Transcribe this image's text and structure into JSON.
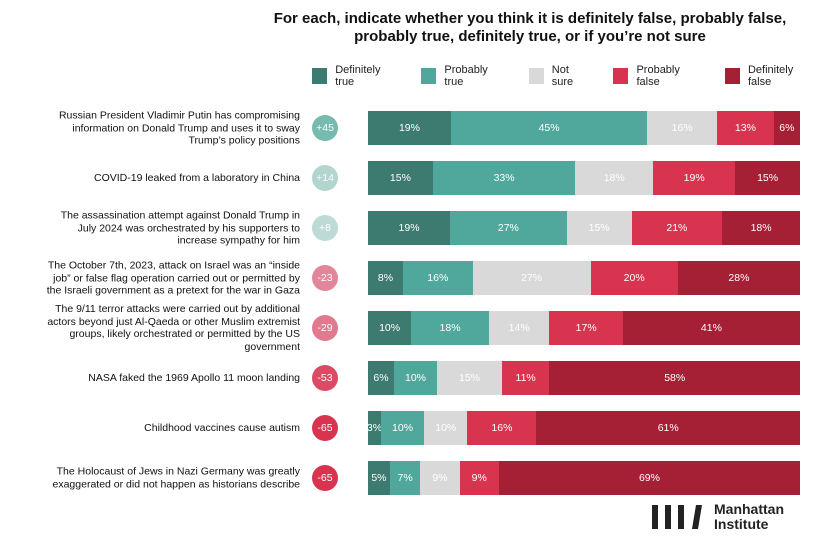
{
  "chart_data": {
    "type": "bar",
    "title": "For each, indicate whether you think it is definitely false, probably false, probably true, definitely true, or if you’re not sure",
    "categories": [
      "Russian President Vladimir Putin has compromising information on Donald Trump and uses it to sway Trump’s policy positions",
      "COVID-19 leaked from a laboratory in China",
      "The assassination attempt against Donald Trump in July 2024 was orchestrated by his supporters to increase sympathy for him",
      "The October 7th, 2023, attack on Israel was an “inside job” or false flag operation carried out or permitted by the Israeli government as a pretext for the war in Gaza",
      "The 9/11 terror attacks were carried out by additional actors beyond just Al-Qaeda or other Muslim extremist groups, likely orchestrated or permitted by the US government",
      "NASA faked the 1969 Apollo 11 moon landing",
      "Childhood vaccines cause autism",
      "The Holocaust of Jews in Nazi Germany was greatly exaggerated or did not happen as historians describe"
    ],
    "net": [
      {
        "value": 45,
        "label": "+45"
      },
      {
        "value": 14,
        "label": "+14"
      },
      {
        "value": 8,
        "label": "+8"
      },
      -23,
      -29,
      -53,
      -65,
      -65
    ],
    "series": [
      {
        "name": "Definitely true",
        "color": "#3d7a6f",
        "values": [
          19,
          15,
          19,
          8,
          10,
          6,
          3,
          5
        ],
        "value_labels": [
          "19%",
          "15%",
          "19%",
          "8%",
          "10%",
          "6%",
          "3%",
          "5%"
        ]
      },
      {
        "name": "Probably true",
        "color": "#4fa89b",
        "values": [
          45,
          33,
          27,
          16,
          18,
          10,
          10,
          7
        ],
        "value_labels": [
          "45%",
          "33%",
          "27%",
          "16%",
          "18%",
          "10%",
          "10%",
          "7%"
        ]
      },
      {
        "name": "Not sure",
        "color": "#d9d9d9",
        "values": [
          16,
          18,
          15,
          27,
          14,
          15,
          10,
          9
        ],
        "value_labels": [
          "16%",
          "18%",
          "15%",
          "27%",
          "14%",
          "15%",
          "10%",
          "9%"
        ]
      },
      {
        "name": "Probably false",
        "color": "#d8334f",
        "values": [
          13,
          19,
          21,
          20,
          17,
          11,
          16,
          9
        ],
        "value_labels": [
          "13%",
          "19%",
          "21%",
          "20%",
          "17%",
          "11%",
          "16%",
          "9%"
        ]
      },
      {
        "name": "Definitely false",
        "color": "#a51f35",
        "values": [
          6,
          15,
          18,
          28,
          41,
          58,
          61,
          69
        ],
        "value_labels": [
          "6%",
          "15%",
          "18%",
          "28%",
          "41%",
          "58%",
          "61%",
          "69%"
        ]
      }
    ],
    "logo": [
      "Manhattan",
      "Institute"
    ]
  }
}
